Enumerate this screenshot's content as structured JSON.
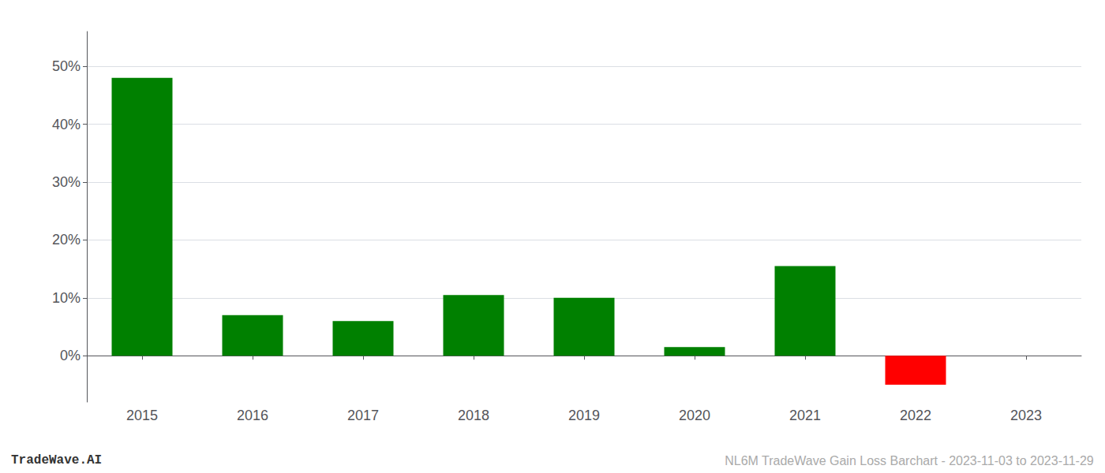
{
  "chart_data": {
    "type": "bar",
    "categories": [
      "2015",
      "2016",
      "2017",
      "2018",
      "2019",
      "2020",
      "2021",
      "2022",
      "2023"
    ],
    "values": [
      0.48,
      0.07,
      0.06,
      0.105,
      0.1,
      0.015,
      0.155,
      -0.05,
      0.0
    ],
    "colors": [
      "#008000",
      "#008000",
      "#008000",
      "#008000",
      "#008000",
      "#008000",
      "#008000",
      "#ff0000",
      "#008000"
    ],
    "ylim": [
      -0.08,
      0.56
    ],
    "yticks": [
      {
        "value": 0.0,
        "label": "0%"
      },
      {
        "value": 0.1,
        "label": "10%"
      },
      {
        "value": 0.2,
        "label": "20%"
      },
      {
        "value": 0.3,
        "label": "30%"
      },
      {
        "value": 0.4,
        "label": "40%"
      },
      {
        "value": 0.5,
        "label": "50%"
      }
    ],
    "grid": true,
    "annotations": [
      "TradeWave.AI",
      "NL6M TradeWave Gain Loss Barchart - 2023-11-03 to 2023-11-29"
    ]
  }
}
